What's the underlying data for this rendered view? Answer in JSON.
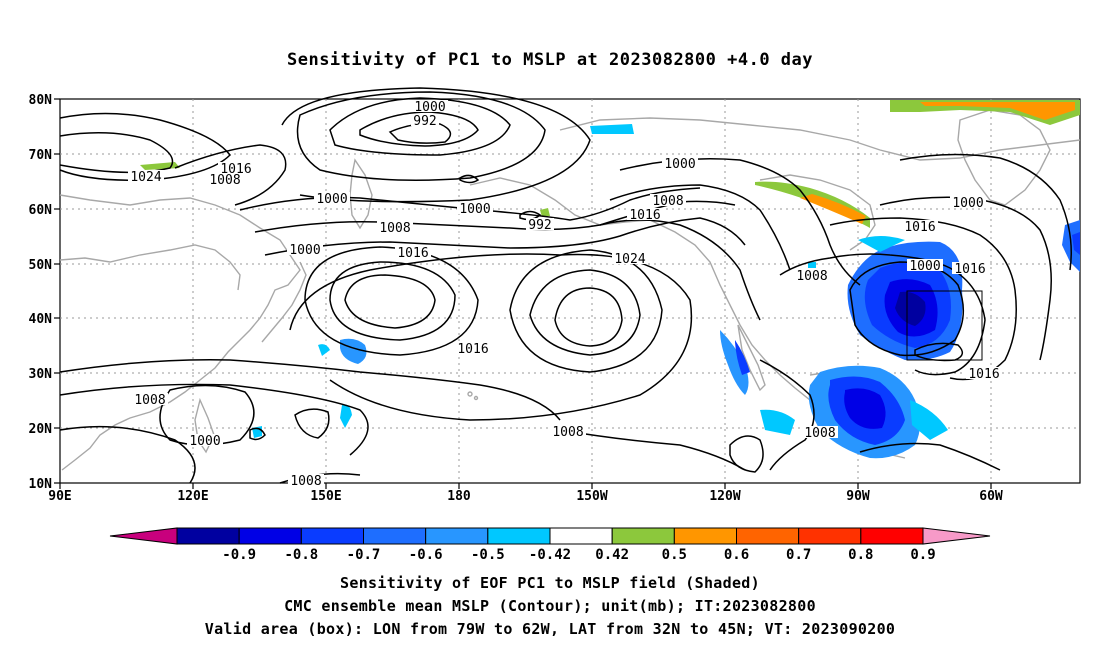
{
  "title": "Sensitivity of PC1 to MSLP at 2023082800 +4.0 day",
  "lat_labels": [
    "80N",
    "70N",
    "60N",
    "50N",
    "40N",
    "30N",
    "20N",
    "10N"
  ],
  "lon_labels": [
    "90E",
    "120E",
    "150E",
    "180",
    "150W",
    "120W",
    "90W",
    "60W"
  ],
  "contour_labels": [
    "1000",
    "992",
    "1016",
    "1024",
    "1008",
    "1000",
    "1000",
    "1008",
    "992",
    "1000",
    "1008",
    "1016",
    "1000",
    "1016",
    "1024",
    "1016",
    "1008",
    "1016",
    "1000",
    "1008",
    "1000",
    "1016",
    "1016",
    "1008",
    "1008",
    "1000",
    "1008"
  ],
  "colorbar": {
    "labels": [
      "-0.9",
      "-0.8",
      "-0.7",
      "-0.6",
      "-0.5",
      "-0.42",
      "0.42",
      "0.5",
      "0.6",
      "0.7",
      "0.8",
      "0.9"
    ],
    "colors": [
      "#c8007d",
      "#0000a0",
      "#0000e6",
      "#0a3cff",
      "#1e6eff",
      "#2896ff",
      "#00c8ff",
      "#ffffff",
      "#8cc83c",
      "#ff9600",
      "#ff6400",
      "#ff3200",
      "#ff0000",
      "#f79ac8"
    ]
  },
  "footer": {
    "line1": "Sensitivity of EOF PC1 to MSLP field (Shaded)",
    "line2": "CMC ensemble mean MSLP (Contour); unit(mb); IT:2023082800",
    "line3": "Valid area (box): LON from 79W to 62W, LAT from 32N to 45N; VT: 2023090200"
  }
}
